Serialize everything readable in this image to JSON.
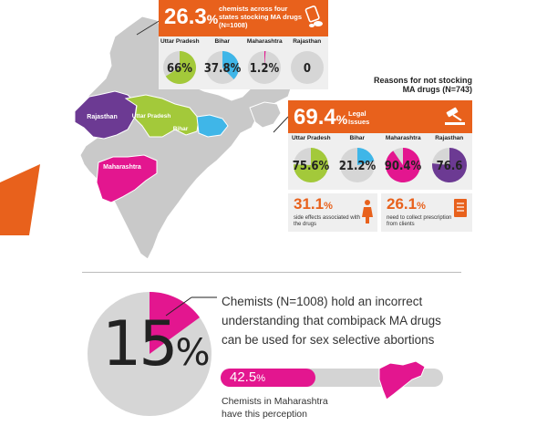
{
  "colors": {
    "orange": "#e8611c",
    "uttar_pradesh": "#a3c93a",
    "bihar": "#3fb6e8",
    "maharashtra": "#e3168f",
    "rajasthan": "#6c3a93",
    "map_gray": "#c9c9c9",
    "panel_gray": "#efefef"
  },
  "stocking": {
    "percent": "26.3",
    "percent_sign": "%",
    "text": "chemists across four states stocking MA drugs (N=1008)",
    "icon": "pills-icon",
    "states": [
      {
        "name": "Uttar Pradesh",
        "value": 66,
        "label": "66%",
        "color": "#a3c93a"
      },
      {
        "name": "Bihar",
        "value": 37.8,
        "label": "37.8%",
        "color": "#3fb6e8"
      },
      {
        "name": "Maharashtra",
        "value": 1.2,
        "label": "1.2%",
        "color": "#e3168f"
      },
      {
        "name": "Rajasthan",
        "value": 0,
        "label": "0",
        "color": "#6c3a93"
      }
    ]
  },
  "map": {
    "labels": {
      "rajasthan": "Rajasthan",
      "uttar_pradesh": "Uttar Pradesh",
      "bihar": "Bihar",
      "maharashtra": "Maharashtra"
    }
  },
  "reasons": {
    "title_line1": "Reasons for not stocking",
    "title_line2": "MA drugs (N=743)",
    "percent": "69.4",
    "percent_sign": "%",
    "text": "Legal Issues",
    "icon": "gavel-icon",
    "states": [
      {
        "name": "Uttar Pradesh",
        "value": 75.6,
        "label": "75.6%",
        "color": "#a3c93a"
      },
      {
        "name": "Bihar",
        "value": 21.2,
        "label": "21.2%",
        "color": "#3fb6e8"
      },
      {
        "name": "Maharashtra",
        "value": 90.4,
        "label": "90.4%",
        "color": "#e3168f"
      },
      {
        "name": "Rajasthan",
        "value": 76.6,
        "label": "76.6",
        "color": "#6c3a93"
      }
    ],
    "side_effects": {
      "percent": "31.1",
      "percent_sign": "%",
      "text": "side effects associated with the drugs",
      "icon": "woman-icon"
    },
    "collect_prescription": {
      "percent": "26.1",
      "percent_sign": "%",
      "text": "need to collect prescription from clients",
      "icon": "document-icon"
    }
  },
  "perception": {
    "big_number": "15",
    "big_sign": "%",
    "value": 15,
    "statement": "Chemists (N=1008) hold an incorrect understanding that combipack MA drugs can be used for sex selective abortions",
    "maharashtra_percent": "42.5",
    "maharashtra_sign": "%",
    "maharashtra_value": 42.5,
    "maharashtra_text": "Chemists in Maharashtra have this perception"
  }
}
